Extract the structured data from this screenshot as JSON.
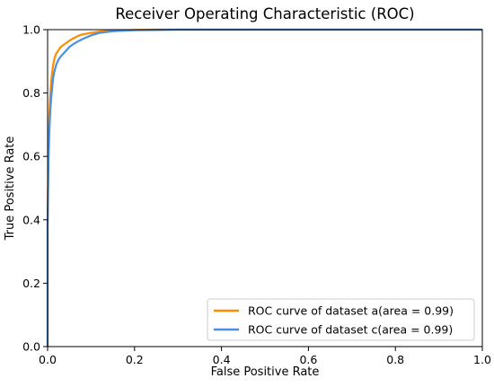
{
  "chart_data": {
    "type": "line",
    "title": "Receiver Operating Characteristic (ROC)",
    "xlabel": "False Positive Rate",
    "ylabel": "True Positive Rate",
    "xlim": [
      0.0,
      1.0
    ],
    "ylim": [
      0.0,
      1.0
    ],
    "xticks": [
      "0.0",
      "0.2",
      "0.4",
      "0.6",
      "0.8",
      "1.0"
    ],
    "yticks": [
      "0.0",
      "0.2",
      "0.4",
      "0.6",
      "0.8",
      "1.0"
    ],
    "grid": false,
    "legend_position": "lower-right",
    "series": [
      {
        "name": "ROC curve of dataset a(area = 0.99)",
        "color": "#ff8c00",
        "x": [
          0.0,
          0.0,
          0.002,
          0.004,
          0.006,
          0.008,
          0.01,
          0.013,
          0.016,
          0.02,
          0.025,
          0.03,
          0.04,
          0.05,
          0.06,
          0.07,
          0.08,
          0.1,
          0.12,
          0.15,
          0.2,
          0.25,
          0.3,
          0.4,
          0.6,
          0.8,
          1.0
        ],
        "y": [
          0.0,
          0.4,
          0.62,
          0.73,
          0.79,
          0.83,
          0.86,
          0.89,
          0.91,
          0.925,
          0.935,
          0.945,
          0.955,
          0.965,
          0.973,
          0.98,
          0.985,
          0.99,
          0.994,
          0.997,
          0.999,
          1.0,
          1.0,
          1.0,
          1.0,
          1.0,
          1.0
        ]
      },
      {
        "name": "ROC curve of dataset c(area = 0.99)",
        "color": "#4a90e2",
        "x": [
          0.0,
          0.0,
          0.002,
          0.004,
          0.006,
          0.008,
          0.01,
          0.013,
          0.016,
          0.02,
          0.025,
          0.03,
          0.04,
          0.05,
          0.06,
          0.07,
          0.08,
          0.1,
          0.12,
          0.15,
          0.2,
          0.25,
          0.3,
          0.4,
          0.6,
          0.8,
          1.0
        ],
        "y": [
          0.0,
          0.38,
          0.58,
          0.68,
          0.74,
          0.78,
          0.81,
          0.85,
          0.87,
          0.89,
          0.905,
          0.915,
          0.93,
          0.945,
          0.955,
          0.963,
          0.97,
          0.982,
          0.99,
          0.995,
          0.998,
          0.999,
          1.0,
          1.0,
          1.0,
          1.0,
          1.0
        ]
      }
    ]
  }
}
